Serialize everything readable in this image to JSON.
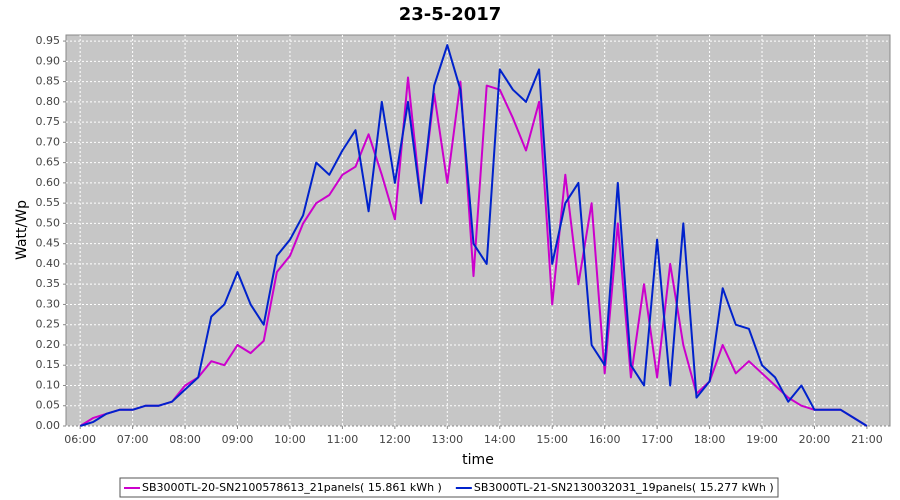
{
  "chart_data": {
    "type": "line",
    "title": "23-5-2017",
    "xlabel": "time",
    "ylabel": "Watt/Wp",
    "x": [
      6.0,
      6.25,
      6.5,
      6.75,
      7.0,
      7.25,
      7.5,
      7.75,
      8.0,
      8.25,
      8.5,
      8.75,
      9.0,
      9.25,
      9.5,
      9.75,
      10.0,
      10.25,
      10.5,
      10.75,
      11.0,
      11.25,
      11.5,
      11.75,
      12.0,
      12.25,
      12.5,
      12.75,
      13.0,
      13.25,
      13.5,
      13.75,
      14.0,
      14.25,
      14.5,
      14.75,
      15.0,
      15.25,
      15.5,
      15.75,
      16.0,
      16.25,
      16.5,
      16.75,
      17.0,
      17.25,
      17.5,
      17.75,
      18.0,
      18.25,
      18.5,
      18.75,
      19.0,
      19.25,
      19.5,
      19.75,
      20.0,
      20.25,
      20.5,
      20.75,
      21.0
    ],
    "series": [
      {
        "name": "SB3000TL-20-SN2100578613_21panels( 15.861 kWh )",
        "color": "#cc00cc",
        "values": [
          0.0,
          0.02,
          0.03,
          0.04,
          0.04,
          0.05,
          0.05,
          0.06,
          0.1,
          0.12,
          0.16,
          0.15,
          0.2,
          0.18,
          0.21,
          0.38,
          0.42,
          0.5,
          0.55,
          0.57,
          0.62,
          0.64,
          0.72,
          0.62,
          0.51,
          0.86,
          0.55,
          0.82,
          0.6,
          0.85,
          0.37,
          0.84,
          0.83,
          0.76,
          0.68,
          0.8,
          0.3,
          0.62,
          0.35,
          0.55,
          0.13,
          0.5,
          0.12,
          0.35,
          0.12,
          0.4,
          0.2,
          0.08,
          0.11,
          0.2,
          0.13,
          0.16,
          0.13,
          0.1,
          0.07,
          0.05,
          0.04,
          0.04,
          0.04,
          0.02,
          0.0
        ]
      },
      {
        "name": "SB3000TL-21-SN2130032031_19panels( 15.277 kWh )",
        "color": "#0022cc",
        "values": [
          0.0,
          0.01,
          0.03,
          0.04,
          0.04,
          0.05,
          0.05,
          0.06,
          0.09,
          0.12,
          0.27,
          0.3,
          0.38,
          0.3,
          0.25,
          0.42,
          0.46,
          0.52,
          0.65,
          0.62,
          0.68,
          0.73,
          0.53,
          0.8,
          0.6,
          0.8,
          0.55,
          0.84,
          0.94,
          0.83,
          0.45,
          0.4,
          0.88,
          0.83,
          0.8,
          0.88,
          0.4,
          0.55,
          0.6,
          0.2,
          0.15,
          0.6,
          0.15,
          0.1,
          0.46,
          0.1,
          0.5,
          0.07,
          0.11,
          0.34,
          0.25,
          0.24,
          0.15,
          0.12,
          0.06,
          0.1,
          0.04,
          0.04,
          0.04,
          0.02,
          0.0
        ]
      }
    ],
    "xlim": [
      5.73,
      21.44
    ],
    "xticks": [
      {
        "value": 6,
        "label": "06:00"
      },
      {
        "value": 7,
        "label": "07:00"
      },
      {
        "value": 8,
        "label": "08:00"
      },
      {
        "value": 9,
        "label": "09:00"
      },
      {
        "value": 10,
        "label": "10:00"
      },
      {
        "value": 11,
        "label": "11:00"
      },
      {
        "value": 12,
        "label": "12:00"
      },
      {
        "value": 13,
        "label": "13:00"
      },
      {
        "value": 14,
        "label": "14:00"
      },
      {
        "value": 15,
        "label": "15:00"
      },
      {
        "value": 16,
        "label": "16:00"
      },
      {
        "value": 17,
        "label": "17:00"
      },
      {
        "value": 18,
        "label": "18:00"
      },
      {
        "value": 19,
        "label": "19:00"
      },
      {
        "value": 20,
        "label": "20:00"
      },
      {
        "value": 21,
        "label": "21:00"
      }
    ],
    "ylim": [
      0,
      0.965
    ],
    "yticks": [
      {
        "value": 0,
        "label": "0.00"
      },
      {
        "value": 0.05,
        "label": "0.05"
      },
      {
        "value": 0.1,
        "label": "0.10"
      },
      {
        "value": 0.15,
        "label": "0.15"
      },
      {
        "value": 0.2,
        "label": "0.20"
      },
      {
        "value": 0.25,
        "label": "0.25"
      },
      {
        "value": 0.3,
        "label": "0.30"
      },
      {
        "value": 0.35,
        "label": "0.35"
      },
      {
        "value": 0.4,
        "label": "0.40"
      },
      {
        "value": 0.45,
        "label": "0.45"
      },
      {
        "value": 0.5,
        "label": "0.50"
      },
      {
        "value": 0.55,
        "label": "0.55"
      },
      {
        "value": 0.6,
        "label": "0.60"
      },
      {
        "value": 0.65,
        "label": "0.65"
      },
      {
        "value": 0.7,
        "label": "0.70"
      },
      {
        "value": 0.75,
        "label": "0.75"
      },
      {
        "value": 0.8,
        "label": "0.80"
      },
      {
        "value": 0.85,
        "label": "0.85"
      },
      {
        "value": 0.9,
        "label": "0.90"
      },
      {
        "value": 0.95,
        "label": "0.95"
      }
    ],
    "grid": true,
    "legend": "bottom"
  }
}
